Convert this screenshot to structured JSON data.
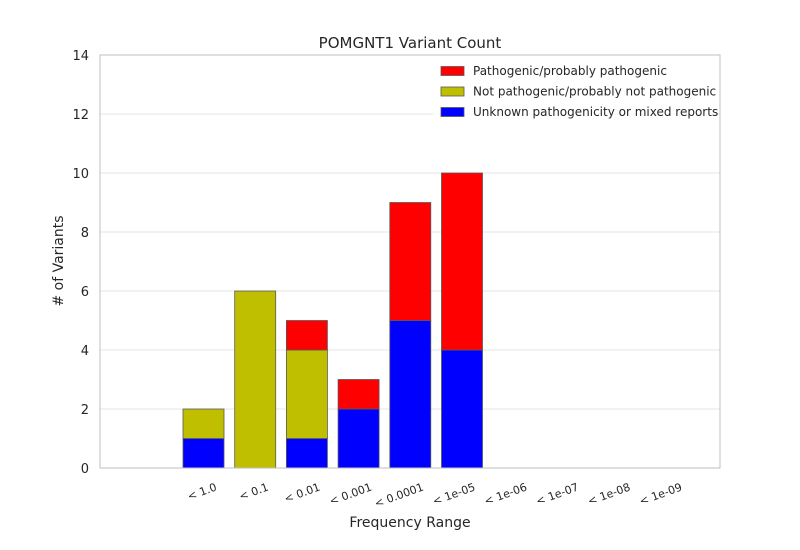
{
  "chart_data": {
    "type": "bar",
    "stacked": true,
    "title": "POMGNT1 Variant Count",
    "xlabel": "Frequency Range",
    "ylabel": "# of Variants",
    "ylim": [
      0,
      14
    ],
    "yticks": [
      "0",
      "2",
      "4",
      "6",
      "8",
      "10",
      "12",
      "14"
    ],
    "grid": true,
    "legend_position": "top-right",
    "categories": [
      "< 1.0",
      "< 0.1",
      "< 0.01",
      "< 0.001",
      "< 0.0001",
      "< 1e-05",
      "< 1e-06",
      "< 1e-07",
      "< 1e-08",
      "< 1e-09"
    ],
    "series": [
      {
        "name": "Unknown pathogenicity or mixed reports",
        "color": "#0000ff",
        "values": [
          1,
          0,
          1,
          2,
          5,
          4,
          0,
          0,
          0,
          0
        ]
      },
      {
        "name": "Not pathogenic/probably not pathogenic",
        "color": "#bfbf00",
        "values": [
          1,
          6,
          3,
          0,
          0,
          0,
          0,
          0,
          0,
          0
        ]
      },
      {
        "name": "Pathogenic/probably pathogenic",
        "color": "#ff0000",
        "values": [
          0,
          0,
          1,
          1,
          4,
          6,
          0,
          0,
          0,
          0
        ]
      }
    ],
    "legend_order": [
      "Pathogenic/probably pathogenic",
      "Not pathogenic/probably not pathogenic",
      "Unknown pathogenicity or mixed reports"
    ]
  }
}
